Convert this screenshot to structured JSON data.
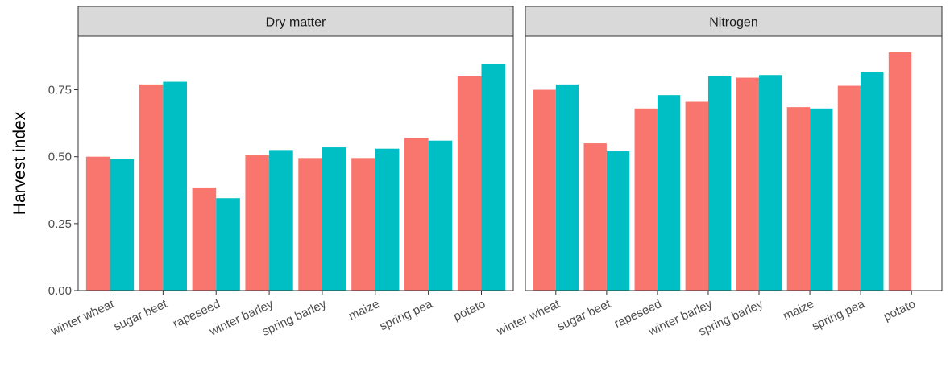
{
  "chart_data": {
    "type": "bar",
    "ylabel": "Harvest index",
    "ylim": [
      0,
      0.95
    ],
    "yticks": [
      0.0,
      0.25,
      0.5,
      0.75
    ],
    "ytick_labels": [
      "0.00",
      "0.25",
      "0.50",
      "0.75"
    ],
    "categories": [
      "winter wheat",
      "sugar beet",
      "rapeseed",
      "winter barley",
      "spring barley",
      "maize",
      "spring pea",
      "potato"
    ],
    "colors": [
      "#F8766D",
      "#00BFC4"
    ],
    "grid": false,
    "legend": "none",
    "panels": [
      {
        "strip": "Dry matter",
        "series": [
          {
            "values": [
              0.5,
              0.77,
              0.385,
              0.505,
              0.495,
              0.495,
              0.57,
              0.8
            ]
          },
          {
            "values": [
              0.49,
              0.78,
              0.345,
              0.525,
              0.535,
              0.53,
              0.56,
              0.845
            ]
          }
        ]
      },
      {
        "strip": "Nitrogen",
        "series": [
          {
            "values": [
              0.75,
              0.55,
              0.68,
              0.705,
              0.795,
              0.685,
              0.765,
              0.89
            ]
          },
          {
            "values": [
              0.77,
              0.52,
              0.73,
              0.8,
              0.805,
              0.68,
              0.815,
              null
            ]
          }
        ]
      }
    ]
  }
}
